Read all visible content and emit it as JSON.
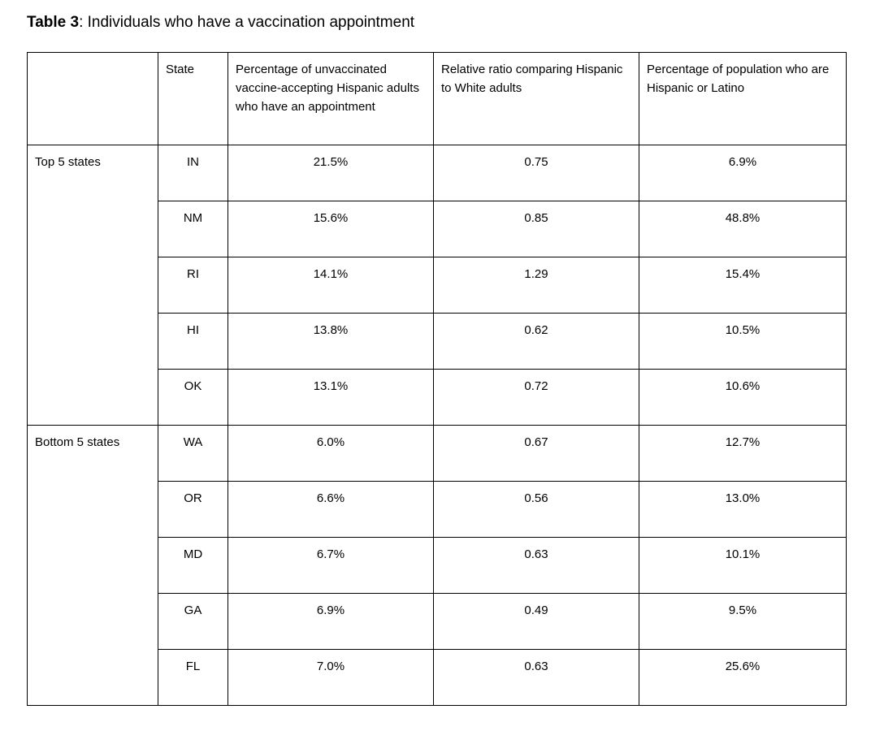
{
  "title": {
    "label": "Table 3",
    "text": ": Individuals who have a vaccination appointment"
  },
  "table": {
    "headers": {
      "group": "",
      "state": "State",
      "pct_appointment": "Percentage of unvaccinated vaccine-accepting Hispanic adults who have an appointment",
      "relative_ratio": "Relative ratio comparing Hispanic to White adults",
      "pct_population": "Percentage of population who are Hispanic or Latino"
    },
    "groups": [
      {
        "label": "Top 5 states",
        "rows": [
          {
            "state": "IN",
            "pct_appointment": "21.5%",
            "relative_ratio": "0.75",
            "pct_population": "6.9%"
          },
          {
            "state": "NM",
            "pct_appointment": "15.6%",
            "relative_ratio": "0.85",
            "pct_population": "48.8%"
          },
          {
            "state": "RI",
            "pct_appointment": "14.1%",
            "relative_ratio": "1.29",
            "pct_population": "15.4%"
          },
          {
            "state": "HI",
            "pct_appointment": "13.8%",
            "relative_ratio": "0.62",
            "pct_population": "10.5%"
          },
          {
            "state": "OK",
            "pct_appointment": "13.1%",
            "relative_ratio": "0.72",
            "pct_population": "10.6%"
          }
        ]
      },
      {
        "label": "Bottom 5 states",
        "rows": [
          {
            "state": "WA",
            "pct_appointment": "6.0%",
            "relative_ratio": "0.67",
            "pct_population": "12.7%"
          },
          {
            "state": "OR",
            "pct_appointment": "6.6%",
            "relative_ratio": "0.56",
            "pct_population": "13.0%"
          },
          {
            "state": "MD",
            "pct_appointment": "6.7%",
            "relative_ratio": "0.63",
            "pct_population": "10.1%"
          },
          {
            "state": "GA",
            "pct_appointment": "6.9%",
            "relative_ratio": "0.49",
            "pct_population": "9.5%"
          },
          {
            "state": "FL",
            "pct_appointment": "7.0%",
            "relative_ratio": "0.63",
            "pct_population": "25.6%"
          }
        ]
      }
    ]
  },
  "colors": {
    "text": "#000000",
    "border": "#000000",
    "background": "#ffffff"
  }
}
